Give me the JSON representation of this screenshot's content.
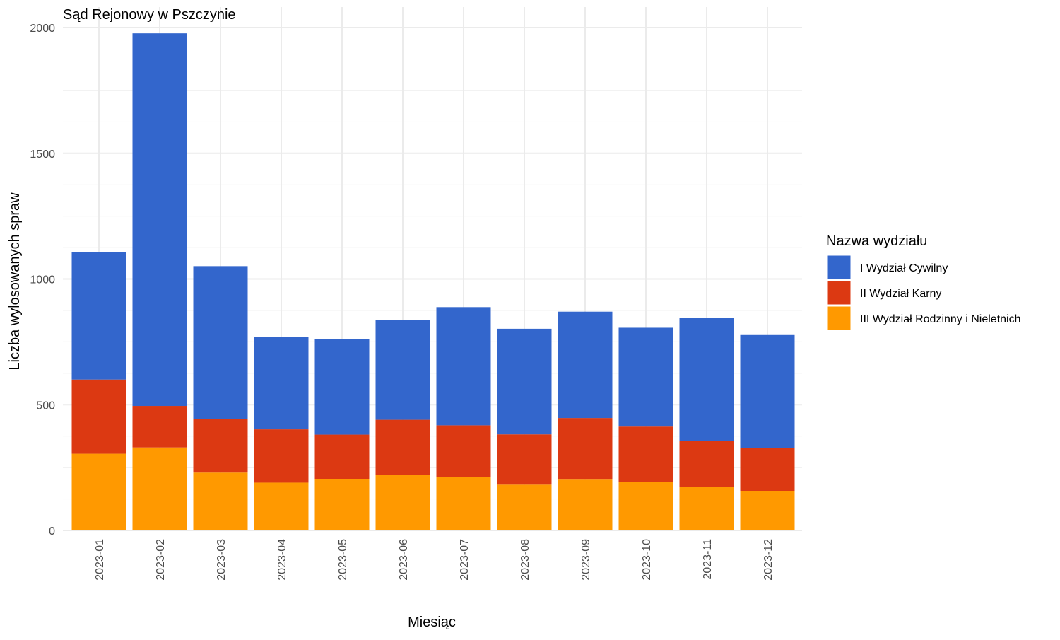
{
  "chart_data": {
    "type": "bar",
    "stacked": true,
    "title": "Sąd Rejonowy w Pszczynie",
    "xlabel": "Miesiąc",
    "ylabel": "Liczba wylosowanych spraw",
    "ylim": [
      0,
      2000
    ],
    "yticks": [
      "0",
      "500",
      "1000",
      "1500",
      "2000"
    ],
    "grid": true,
    "legend": {
      "title": "Nazwa wydziału",
      "position": "right"
    },
    "categories": [
      "2023-01",
      "2023-02",
      "2023-03",
      "2023-04",
      "2023-05",
      "2023-06",
      "2023-07",
      "2023-08",
      "2023-09",
      "2023-10",
      "2023-11",
      "2023-12"
    ],
    "series": [
      {
        "name": "III Wydział Rodzinny i Nieletnich",
        "color": "#FF9900",
        "values": [
          305,
          330,
          230,
          190,
          203,
          220,
          213,
          182,
          202,
          193,
          173,
          157
        ]
      },
      {
        "name": "II Wydział Karny",
        "color": "#DC3912",
        "values": [
          295,
          165,
          213,
          212,
          178,
          220,
          205,
          200,
          245,
          220,
          183,
          170
        ]
      },
      {
        "name": "I Wydział Cywilny",
        "color": "#3366CC",
        "values": [
          508,
          1482,
          608,
          367,
          380,
          398,
          470,
          420,
          423,
          393,
          490,
          450
        ]
      }
    ],
    "legend_order": [
      "I Wydział Cywilny",
      "II Wydział Karny",
      "III Wydział Rodzinny i Nieletnich"
    ]
  }
}
